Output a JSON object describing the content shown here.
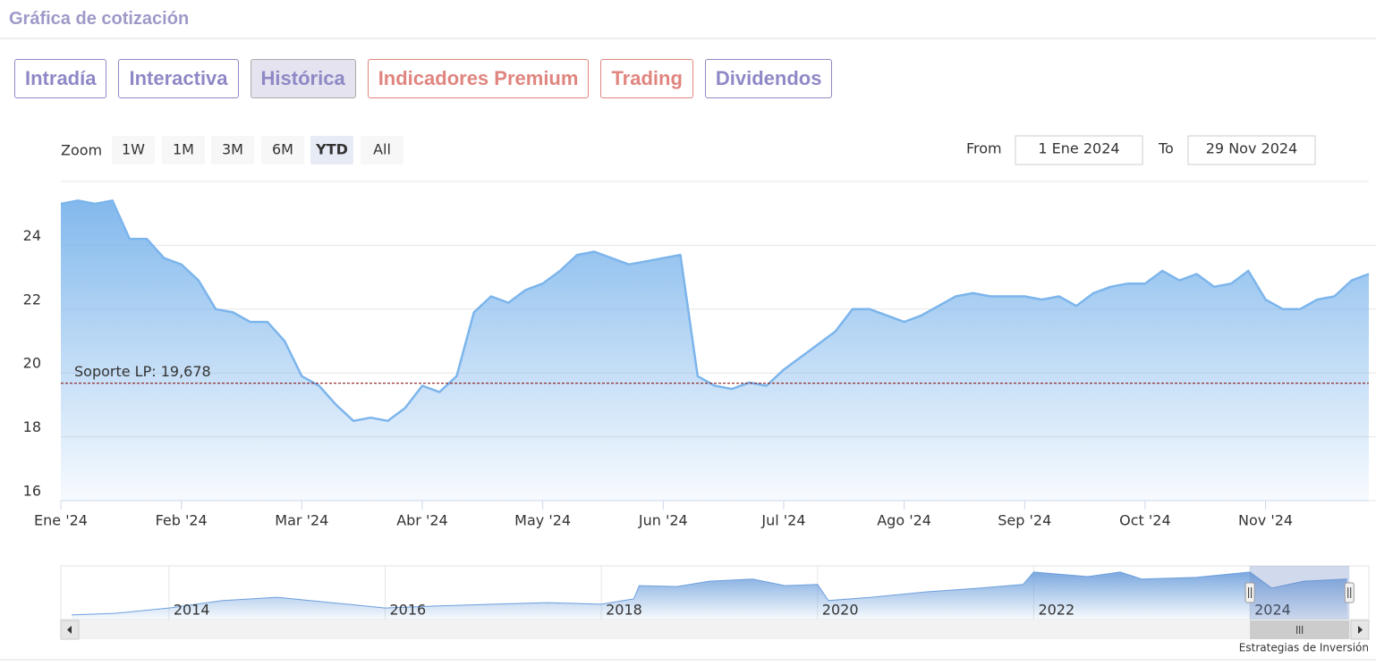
{
  "header": {
    "title": "Gráfica de cotización"
  },
  "tabs": {
    "items": [
      {
        "label": "Intradía",
        "color": "#8e89c6"
      },
      {
        "label": "Interactiva",
        "color": "#8e89c6"
      },
      {
        "label": "Histórica",
        "color": "#8e89c6"
      },
      {
        "label": "Indicadores Premium",
        "color": "#e0857f"
      },
      {
        "label": "Trading",
        "color": "#e0857f"
      },
      {
        "label": "Dividendos",
        "color": "#8e89c6"
      }
    ],
    "active": "Histórica"
  },
  "chart_data": [
    {
      "type": "area",
      "zoom_label": "Zoom",
      "zoom_buttons": [
        "1W",
        "1M",
        "3M",
        "6M",
        "YTD",
        "All"
      ],
      "zoom_active": "YTD",
      "range_from_label": "From",
      "range_from": "1 Ene 2024",
      "range_to_label": "To",
      "range_to": "29 Nov 2024",
      "categories": [
        "Ene '24",
        null,
        null,
        null,
        null,
        null,
        null,
        "Feb '24",
        null,
        null,
        null,
        null,
        null,
        null,
        "Mar '24",
        null,
        null,
        null,
        null,
        null,
        null,
        "Abr '24",
        null,
        null,
        null,
        null,
        null,
        null,
        "May '24",
        null,
        null,
        null,
        null,
        null,
        null,
        "Jun '24",
        null,
        null,
        null,
        null,
        null,
        null,
        "Jul '24",
        null,
        null,
        null,
        null,
        null,
        null,
        "Ago '24",
        null,
        null,
        null,
        null,
        null,
        null,
        "Sep '24",
        null,
        null,
        null,
        null,
        null,
        null,
        "Oct '24",
        null,
        null,
        null,
        null,
        null,
        null,
        "Nov '24",
        null,
        null,
        null,
        null,
        null,
        null
      ],
      "values": [
        25.3,
        25.4,
        25.3,
        25.4,
        24.2,
        24.2,
        23.6,
        23.4,
        22.9,
        22.0,
        21.9,
        21.6,
        21.6,
        21.0,
        19.9,
        19.6,
        19.0,
        18.5,
        18.6,
        18.5,
        18.9,
        19.6,
        19.4,
        19.9,
        21.9,
        22.4,
        22.2,
        22.6,
        22.8,
        23.2,
        23.7,
        23.8,
        23.6,
        23.4,
        23.5,
        23.6,
        23.7,
        19.9,
        19.6,
        19.5,
        19.7,
        19.6,
        20.1,
        20.5,
        20.9,
        21.3,
        22.0,
        22.0,
        21.8,
        21.6,
        21.8,
        22.1,
        22.4,
        22.5,
        22.4,
        22.4,
        22.4,
        22.3,
        22.4,
        22.1,
        22.5,
        22.7,
        22.8,
        22.8,
        23.2,
        22.9,
        23.1,
        22.7,
        22.8,
        23.2,
        22.3,
        22.0,
        22.0,
        22.3,
        22.4,
        22.9,
        23.1
      ],
      "color": "#7cb5ec",
      "ylim": [
        16,
        26
      ],
      "yticks": [
        16,
        18,
        20,
        22,
        24
      ],
      "grid": true,
      "annotation": {
        "label": "Soporte LP: 19,678",
        "value": 19.678,
        "color": "#8b1a1a"
      }
    },
    {
      "type": "area",
      "x": [
        2013.1,
        2013.5,
        2014,
        2014.5,
        2015,
        2015.5,
        2016,
        2016.5,
        2017,
        2017.5,
        2018,
        2018.3,
        2018.35,
        2018.7,
        2019,
        2019.4,
        2019.7,
        2020,
        2020.1,
        2020.5,
        2021,
        2021.5,
        2021.9,
        2022,
        2022.5,
        2022.8,
        2023,
        2023.5,
        2024,
        2024.2,
        2024.5,
        2024.9
      ],
      "values": [
        9.6,
        10.2,
        12.1,
        14.7,
        15.9,
        14.0,
        12.1,
        12.8,
        13.4,
        14.0,
        13.4,
        15.3,
        20.0,
        19.7,
        21.6,
        22.3,
        20.0,
        20.4,
        14.7,
        15.9,
        17.8,
        19.1,
        20.4,
        24.8,
        23.2,
        24.8,
        22.3,
        22.9,
        24.8,
        19.1,
        21.6,
        22.3
      ],
      "color": "#6d9fdc",
      "xlim": [
        2013,
        2025.1
      ],
      "ylim": [
        8,
        27
      ],
      "xticks": [
        2014,
        2016,
        2018,
        2020,
        2022,
        2024
      ],
      "selection": [
        2024,
        2024.92
      ],
      "credits": "Estrategias de Inversión"
    }
  ]
}
